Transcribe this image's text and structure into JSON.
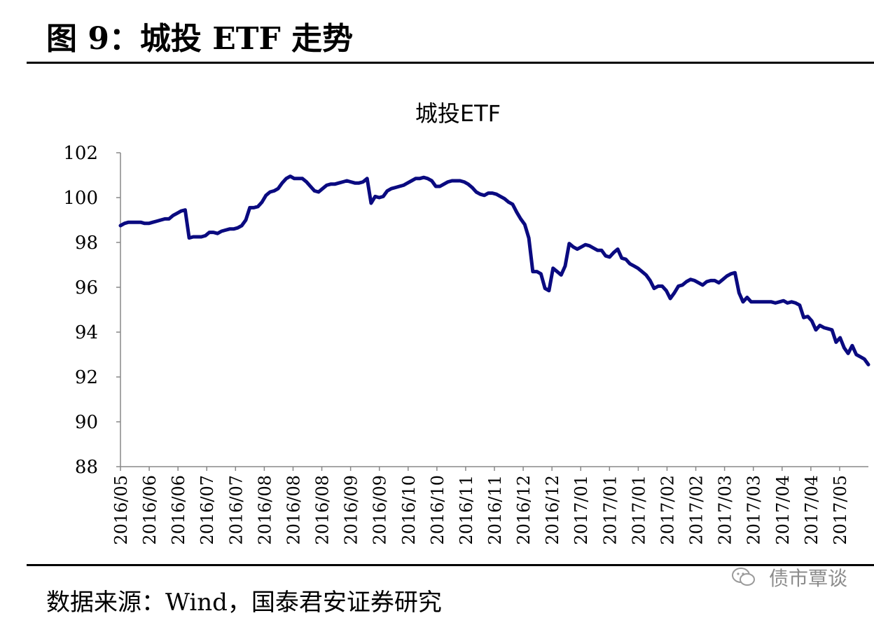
{
  "figure": {
    "title": "图 9：城投 ETF 走势",
    "source": "数据来源：Wind，国泰君安证券研究",
    "watermark": "债市覃谈"
  },
  "chart_data": {
    "type": "line",
    "title": "城投ETF",
    "xlabel": "",
    "ylabel": "",
    "ylim": [
      88,
      102
    ],
    "yticks": [
      88,
      90,
      92,
      94,
      96,
      98,
      100,
      102
    ],
    "grid": false,
    "legend": "none",
    "color": "#0a0a80",
    "x_tick_labels": [
      "2016/05",
      "2016/06",
      "2016/06",
      "2016/07",
      "2016/07",
      "2016/08",
      "2016/08",
      "2016/08",
      "2016/09",
      "2016/09",
      "2016/10",
      "2016/10",
      "2016/11",
      "2016/11",
      "2016/12",
      "2016/12",
      "2017/01",
      "2017/01",
      "2017/01",
      "2017/02",
      "2017/02",
      "2017/03",
      "2017/03",
      "2017/04",
      "2017/04",
      "2017/05"
    ],
    "series": [
      {
        "values": [
          98.75,
          98.85,
          98.9,
          98.9,
          98.9,
          98.9,
          98.85,
          98.85,
          98.9,
          98.95,
          99.0,
          99.05,
          99.05,
          99.2,
          99.3,
          99.4,
          99.45,
          98.2,
          98.25,
          98.25,
          98.25,
          98.3,
          98.45,
          98.45,
          98.4,
          98.5,
          98.55,
          98.6,
          98.6,
          98.65,
          98.75,
          99.0,
          99.55,
          99.55,
          99.6,
          99.8,
          100.1,
          100.25,
          100.3,
          100.4,
          100.65,
          100.85,
          100.95,
          100.85,
          100.85,
          100.85,
          100.7,
          100.5,
          100.3,
          100.25,
          100.4,
          100.55,
          100.6,
          100.6,
          100.65,
          100.7,
          100.75,
          100.7,
          100.65,
          100.65,
          100.7,
          100.85,
          99.75,
          100.05,
          100.0,
          100.05,
          100.3,
          100.4,
          100.45,
          100.5,
          100.55,
          100.65,
          100.75,
          100.85,
          100.85,
          100.9,
          100.85,
          100.75,
          100.5,
          100.5,
          100.6,
          100.7,
          100.75,
          100.75,
          100.75,
          100.7,
          100.6,
          100.45,
          100.25,
          100.15,
          100.1,
          100.2,
          100.2,
          100.15,
          100.05,
          99.95,
          99.8,
          99.7,
          99.35,
          99.05,
          98.8,
          98.2,
          96.7,
          96.7,
          96.6,
          95.95,
          95.85,
          96.85,
          96.7,
          96.55,
          96.95,
          97.95,
          97.8,
          97.7,
          97.8,
          97.9,
          97.85,
          97.75,
          97.65,
          97.65,
          97.4,
          97.35,
          97.55,
          97.7,
          97.3,
          97.25,
          97.05,
          96.95,
          96.85,
          96.7,
          96.55,
          96.3,
          95.95,
          96.05,
          96.05,
          95.85,
          95.5,
          95.75,
          96.05,
          96.1,
          96.25,
          96.35,
          96.3,
          96.2,
          96.1,
          96.25,
          96.3,
          96.3,
          96.2,
          96.35,
          96.5,
          96.6,
          96.65,
          95.75,
          95.35,
          95.55,
          95.35,
          95.35,
          95.35,
          95.35,
          95.35,
          95.35,
          95.3,
          95.35,
          95.4,
          95.3,
          95.35,
          95.3,
          95.2,
          94.65,
          94.7,
          94.5,
          94.1,
          94.3,
          94.2,
          94.15,
          94.1,
          93.55,
          93.75,
          93.3,
          93.05,
          93.4,
          93.0,
          92.9,
          92.8,
          92.55
        ]
      }
    ]
  }
}
